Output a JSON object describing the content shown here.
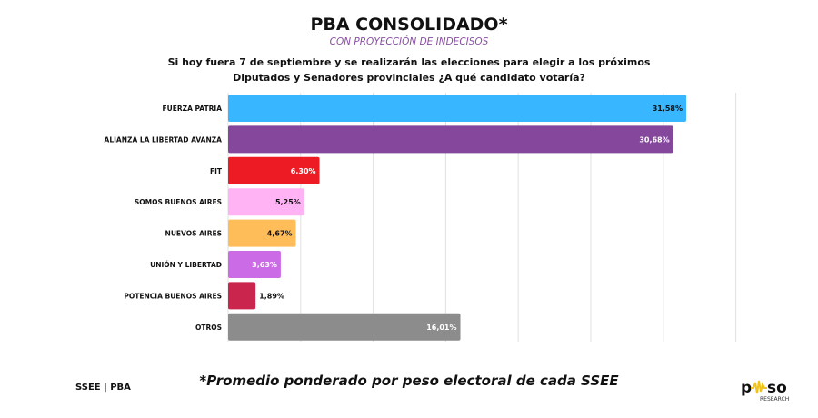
{
  "header": {
    "title": "PBA CONSOLIDADO*",
    "subtitle": "CON PROYECCIÓN DE INDECISOS",
    "question_line1": "Si hoy fuera 7 de septiembre y se realizarán las elecciones para elegir a los próximos",
    "question_line2": "Diputados y Senadores provinciales ¿A qué candidato votaría?"
  },
  "footer": {
    "footnote": "*Promedio ponderado por peso electoral de cada SSEE",
    "source": "SSEE | PBA",
    "logo_text": "pulso",
    "logo_sub": "RESEARCH"
  },
  "chart_data": {
    "type": "bar",
    "orientation": "horizontal",
    "grid": true,
    "xlim": [
      0,
      35
    ],
    "categories": [
      "FUERZA PATRIA",
      "ALIANZA LA LIBERTAD AVANZA",
      "FIT",
      "SOMOS BUENOS AIRES",
      "NUEVOS AIRES",
      "UNIÓN Y LIBERTAD",
      "POTENCIA BUENOS AIRES",
      "OTROS"
    ],
    "values": [
      31.58,
      30.68,
      6.3,
      5.25,
      4.67,
      3.63,
      1.89,
      16.01
    ],
    "labels": [
      "31,58%",
      "30,68%",
      "6,30%",
      "5,25%",
      "4,67%",
      "3,63%",
      "1,89%",
      "16,01%"
    ],
    "colors": [
      "#38b6ff",
      "#84479b",
      "#ed1c24",
      "#ffb3f5",
      "#ffbd59",
      "#cb6ce6",
      "#c9254d",
      "#8c8c8c"
    ],
    "label_colors": [
      "#111111",
      "#ffffff",
      "#ffffff",
      "#111111",
      "#111111",
      "#ffffff",
      "#111111",
      "#ffffff"
    ]
  }
}
